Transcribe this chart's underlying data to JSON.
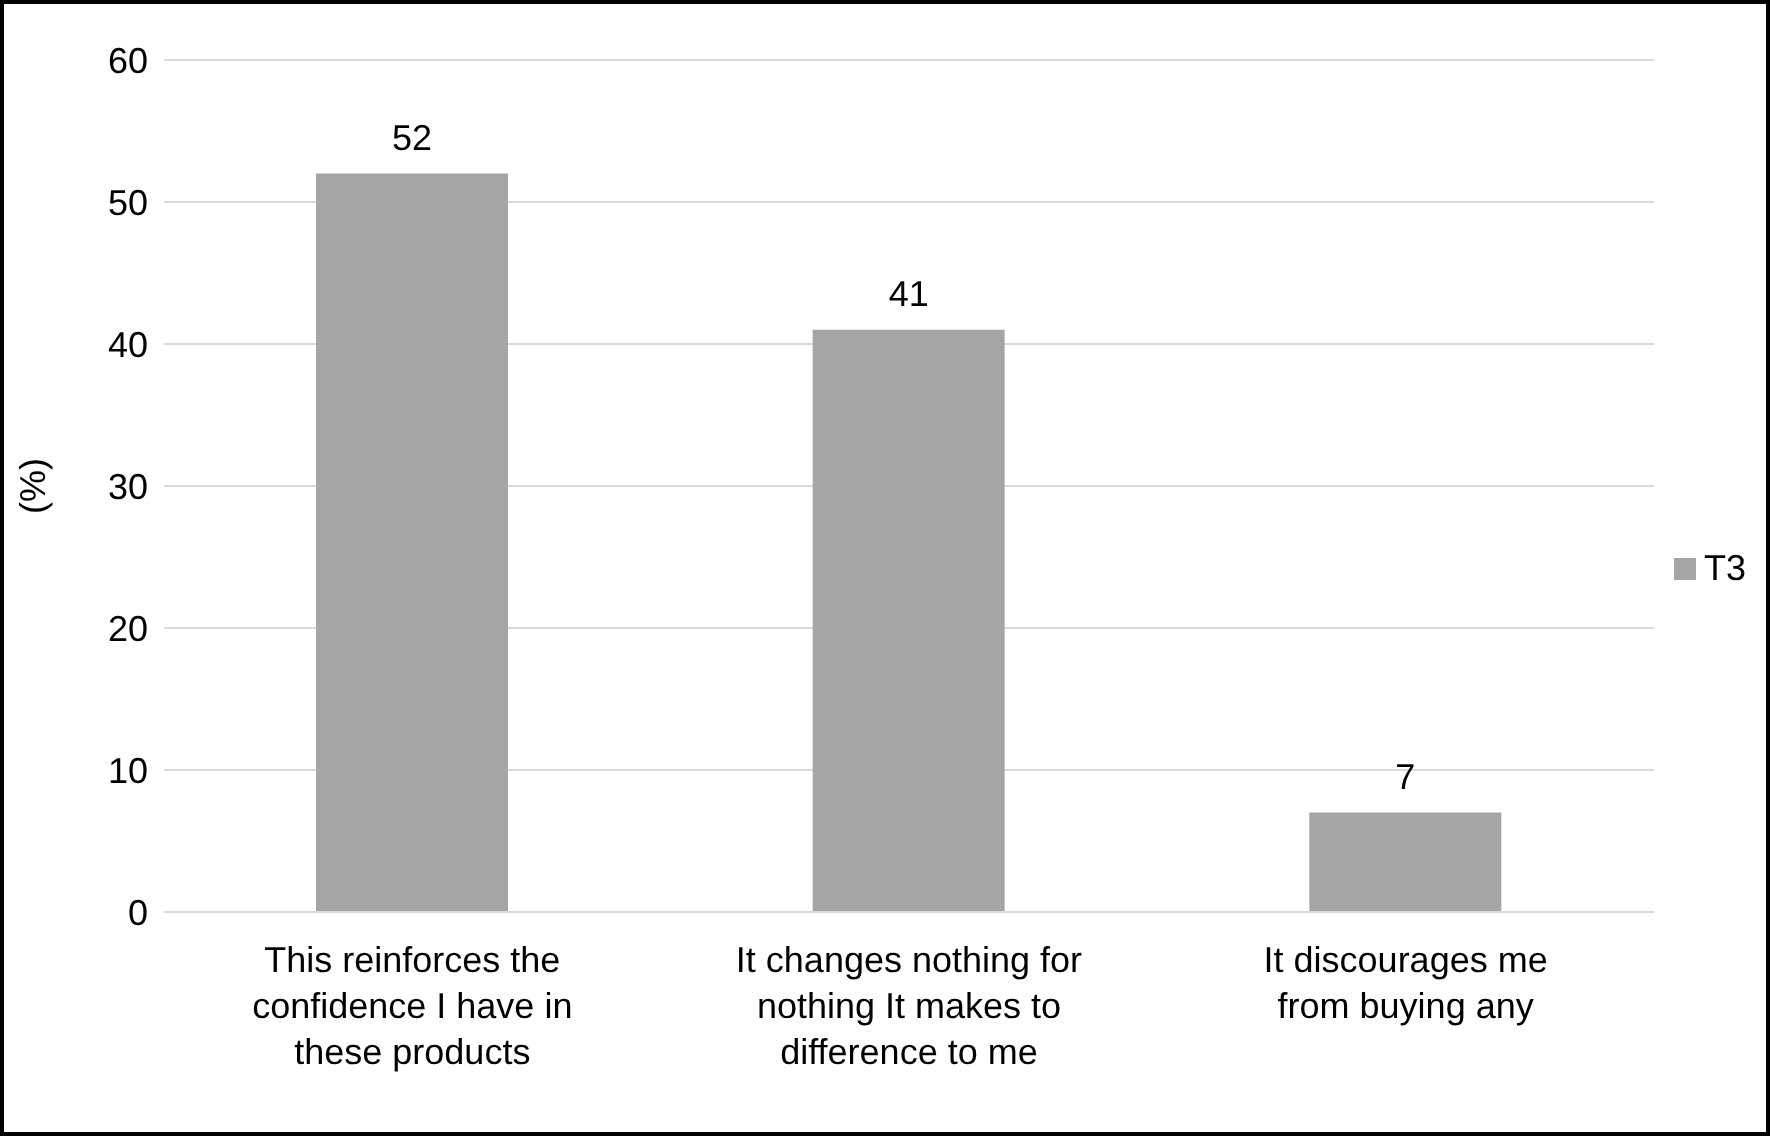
{
  "chart_data": {
    "type": "bar",
    "ylabel": "(%)",
    "categories": [
      "This reinforces the confidence I have in these products",
      "It changes nothing for nothing It makes to difference to me",
      "It discourages me from buying any"
    ],
    "series": [
      {
        "name": "T3",
        "color": "#a5a5a5",
        "values": [
          52,
          41,
          7
        ]
      }
    ],
    "ylim": [
      0,
      60
    ],
    "yticks": [
      0,
      10,
      20,
      30,
      40,
      50,
      60
    ],
    "grid": "y",
    "legend": "right",
    "data_labels": true
  }
}
